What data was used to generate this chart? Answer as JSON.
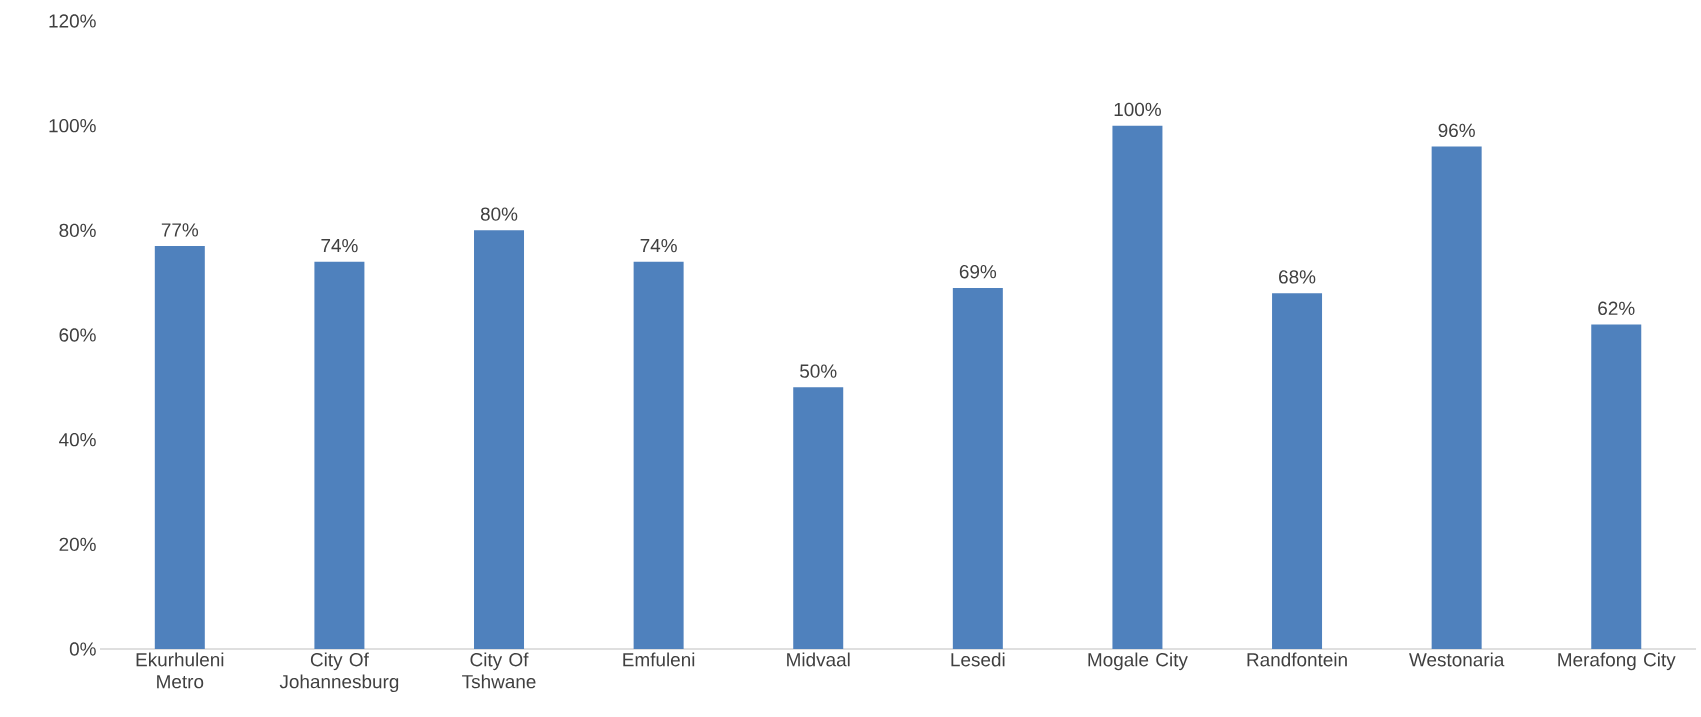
{
  "chart_data": {
    "type": "bar",
    "categories": [
      "Ekurhuleni Metro",
      "City Of Johannesburg",
      "City Of Tshwane",
      "Emfuleni",
      "Midvaal",
      "Lesedi",
      "Mogale City",
      "Randfontein",
      "Westonaria",
      "Merafong City"
    ],
    "values": [
      77,
      74,
      80,
      74,
      50,
      69,
      100,
      68,
      96,
      62
    ],
    "value_labels": [
      "77%",
      "74%",
      "80%",
      "74%",
      "50%",
      "69%",
      "100%",
      "68%",
      "96%",
      "62%"
    ],
    "color": "#4f81bd",
    "ylim": [
      0,
      120
    ],
    "yticks": [
      {
        "value": 0,
        "label": "0%"
      },
      {
        "value": 20,
        "label": "20%"
      },
      {
        "value": 40,
        "label": "40%"
      },
      {
        "value": 60,
        "label": "60%"
      },
      {
        "value": 80,
        "label": "80%"
      },
      {
        "value": 100,
        "label": "100%"
      },
      {
        "value": 120,
        "label": "120%"
      }
    ],
    "grid": false
  }
}
